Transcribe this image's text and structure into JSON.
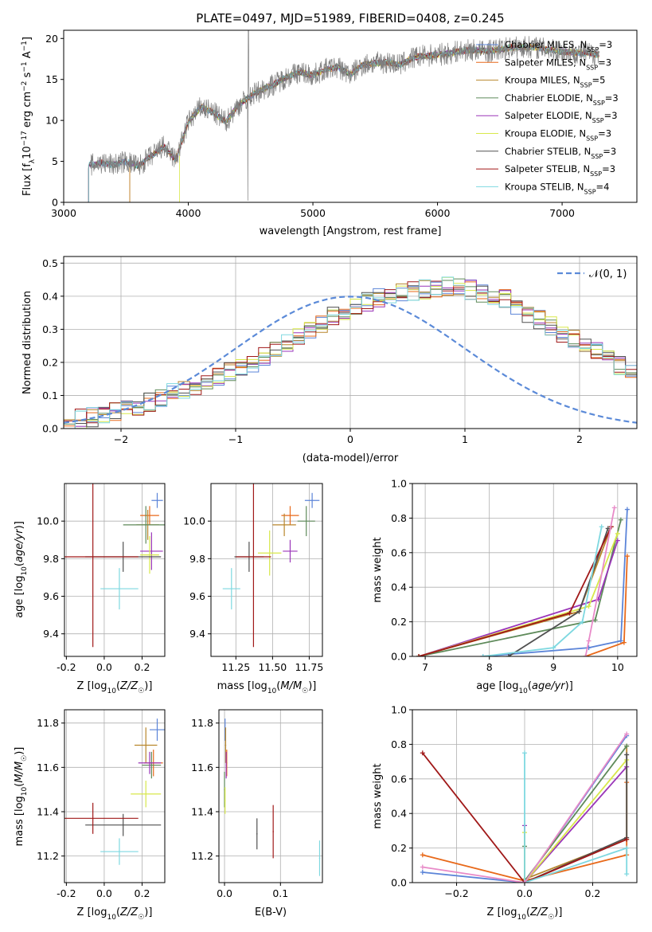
{
  "models": [
    {
      "name": "Chabrier MILES, N$_{SSP}$=3",
      "label": "Chabrier MILES, N",
      "sub": "SSP",
      "eq": "=3",
      "color": "#5b84d8"
    },
    {
      "name": "Salpeter MILES, N$_{SSP}$=3",
      "label": "Salpeter MILES, N",
      "sub": "SSP",
      "eq": "=3",
      "color": "#e8691a"
    },
    {
      "name": "Kroupa MILES, N$_{SSP}$=5",
      "label": "Kroupa MILES, N",
      "sub": "SSP",
      "eq": "=5",
      "color": "#b8862c"
    },
    {
      "name": "Chabrier ELODIE, N$_{SSP}$=3",
      "label": "Chabrier ELODIE, N",
      "sub": "SSP",
      "eq": "=3",
      "color": "#5e8a5a"
    },
    {
      "name": "Salpeter ELODIE, N$_{SSP}$=3",
      "label": "Salpeter ELODIE, N",
      "sub": "SSP",
      "eq": "=3",
      "color": "#9a35b8"
    },
    {
      "name": "Kroupa ELODIE, N$_{SSP}$=3",
      "label": "Kroupa ELODIE, N",
      "sub": "SSP",
      "eq": "=3",
      "color": "#d8e84a"
    },
    {
      "name": "Chabrier STELIB, N$_{SSP}$=3",
      "label": "Chabrier STELIB, N",
      "sub": "SSP",
      "eq": "=3",
      "color": "#505050"
    },
    {
      "name": "Salpeter STELIB, N$_{SSP}$=3",
      "label": "Salpeter STELIB, N",
      "sub": "SSP",
      "eq": "=3",
      "color": "#a01818"
    },
    {
      "name": "Kroupa STELIB, N$_{SSP}$=4",
      "label": "Kroupa STELIB, N",
      "sub": "SSP",
      "eq": "=4",
      "color": "#7ed8e0"
    }
  ],
  "extra_colors": {
    "pink": "#e88ac8",
    "teal": "#3fa8a8"
  },
  "chart_data": [
    {
      "type": "line",
      "title": "PLATE=0497, MJD=51989, FIBERID=0408, z=0.245",
      "xlabel": "wavelength [Angstrom, rest frame]",
      "ylabel": "Flux [f$_\\lambda$10$^{-17}$ erg cm$^{-2}$ s$^{-1}$ A$^{-1}$]",
      "xlim": [
        3000,
        7600
      ],
      "ylim": [
        0,
        21
      ],
      "xticks": [
        "3000",
        "4000",
        "5000",
        "6000",
        "7000"
      ],
      "yticks": [
        "0",
        "5",
        "10",
        "15",
        "20"
      ],
      "continuum": {
        "x": [
          3200,
          3300,
          3400,
          3500,
          3600,
          3700,
          3800,
          3900,
          4000,
          4100,
          4200,
          4300,
          4400,
          4500,
          4600,
          4700,
          4800,
          4900,
          5000,
          5100,
          5200,
          5300,
          5400,
          5500,
          5600,
          5700,
          5800,
          5900,
          6000,
          6100,
          6200,
          6300,
          6400,
          6500,
          6600,
          6700,
          6800,
          6900,
          7000,
          7100,
          7200,
          7300
        ],
        "y": [
          4.5,
          4.8,
          4.6,
          5.0,
          4.4,
          5.6,
          6.8,
          5.2,
          9.8,
          11.6,
          11.0,
          9.8,
          11.8,
          13.0,
          13.8,
          14.5,
          15.4,
          15.9,
          15.5,
          16.2,
          16.5,
          15.6,
          16.8,
          17.0,
          17.1,
          16.8,
          17.6,
          17.9,
          18.0,
          18.2,
          18.5,
          18.6,
          18.4,
          18.7,
          18.9,
          19.0,
          18.9,
          18.6,
          18.4,
          18.3,
          18.2,
          18.0
        ]
      }
    },
    {
      "type": "bar",
      "xlabel": "(data-model)/error",
      "ylabel": "Normed distribution",
      "xlim": [
        -2.5,
        2.5
      ],
      "ylim": [
        0,
        0.52
      ],
      "xticks": [
        "−2",
        "−1",
        "0",
        "1",
        "2"
      ],
      "yticks": [
        "0.0",
        "0.1",
        "0.2",
        "0.3",
        "0.4",
        "0.5"
      ],
      "legend": "$\\mathcal{N}(0,1)$",
      "legend_text": "𝒩(0, 1)",
      "bin_width": 0.1,
      "bin_start": -2.5,
      "base_values": [
        0.02,
        0.03,
        0.035,
        0.04,
        0.05,
        0.06,
        0.07,
        0.08,
        0.095,
        0.11,
        0.12,
        0.13,
        0.14,
        0.155,
        0.17,
        0.185,
        0.2,
        0.22,
        0.24,
        0.26,
        0.28,
        0.3,
        0.32,
        0.34,
        0.355,
        0.37,
        0.385,
        0.395,
        0.405,
        0.41,
        0.415,
        0.42,
        0.425,
        0.43,
        0.425,
        0.42,
        0.41,
        0.4,
        0.39,
        0.37,
        0.35,
        0.33,
        0.31,
        0.29,
        0.27,
        0.25,
        0.23,
        0.21,
        0.19,
        0.17
      ]
    },
    {
      "type": "scatter",
      "xlabel": "Z [log$_{10}$(Z/Z$_\\odot$)]",
      "ylabel": "age  [log$_{10}$(age/yr)]",
      "xlim": [
        -0.21,
        0.32
      ],
      "ylim": [
        9.28,
        10.2
      ],
      "xticks": [
        "-0.2",
        "0.0",
        "0.2"
      ],
      "yticks": [
        "9.4",
        "9.6",
        "9.8",
        "10.0"
      ],
      "points": [
        [
          0.28,
          10.11,
          0.03,
          0.04
        ],
        [
          0.24,
          10.03,
          0.05,
          0.05
        ],
        [
          0.23,
          9.98,
          0.06,
          0.08
        ],
        [
          0.22,
          9.98,
          0.12,
          0.1
        ],
        [
          0.25,
          9.84,
          0.06,
          0.1
        ],
        [
          0.24,
          9.82,
          0.05,
          0.1
        ],
        [
          0.1,
          9.81,
          0.2,
          0.08
        ],
        [
          -0.06,
          9.81,
          0.24,
          0.48
        ],
        [
          0.08,
          9.64,
          0.1,
          0.11
        ]
      ]
    },
    {
      "type": "scatter",
      "xlabel": "mass [log$_{10}$(M/M$_\\odot$)]",
      "ylabel": "",
      "xlim": [
        11.08,
        11.84
      ],
      "ylim": [
        9.28,
        10.2
      ],
      "xticks": [
        "11.25",
        "11.50",
        "11.75"
      ],
      "yticks": [
        "9.4",
        "9.6",
        "9.8",
        "10.0"
      ],
      "points": [
        [
          11.77,
          10.11,
          0.05,
          0.04
        ],
        [
          11.62,
          10.03,
          0.06,
          0.05
        ],
        [
          11.58,
          9.98,
          0.08,
          0.06
        ],
        [
          11.73,
          10.0,
          0.06,
          0.08
        ],
        [
          11.62,
          9.84,
          0.05,
          0.06
        ],
        [
          11.48,
          9.83,
          0.08,
          0.12
        ],
        [
          11.34,
          9.81,
          0.1,
          0.08
        ],
        [
          11.37,
          9.81,
          0.12,
          0.48
        ],
        [
          11.22,
          9.64,
          0.06,
          0.11
        ]
      ]
    },
    {
      "type": "line",
      "xlabel": "age  [log$_{10}$(age/yr)]",
      "ylabel": "mass weight",
      "xlim": [
        6.8,
        10.3
      ],
      "ylim": [
        0,
        1.0
      ],
      "xticks": [
        "7",
        "8",
        "9",
        "10"
      ],
      "yticks": [
        "0.0",
        "0.2",
        "0.4",
        "0.6",
        "0.8",
        "1.0"
      ],
      "lines": [
        [
          [
            7.9,
            0.0
          ],
          [
            9.55,
            0.05
          ],
          [
            10.05,
            0.09
          ],
          [
            10.15,
            0.85
          ]
        ],
        [
          [
            9.5,
            0.0
          ],
          [
            10.1,
            0.08
          ],
          [
            10.15,
            0.58
          ]
        ],
        [
          [
            6.9,
            0.0
          ],
          [
            9.4,
            0.26
          ],
          [
            9.9,
            0.75
          ]
        ],
        [
          [
            6.9,
            0.0
          ],
          [
            9.65,
            0.21
          ],
          [
            10.05,
            0.79
          ]
        ],
        [
          [
            6.9,
            0.0
          ],
          [
            9.7,
            0.33
          ],
          [
            10.0,
            0.67
          ]
        ],
        [
          [
            6.9,
            0.0
          ],
          [
            9.55,
            0.29
          ],
          [
            10.0,
            0.71
          ]
        ],
        [
          [
            8.3,
            0.0
          ],
          [
            9.4,
            0.26
          ],
          [
            9.85,
            0.74
          ]
        ],
        [
          [
            6.9,
            0.0
          ],
          [
            9.25,
            0.25
          ],
          [
            9.9,
            0.75
          ]
        ],
        [
          [
            7.9,
            0.0
          ],
          [
            9.0,
            0.05
          ],
          [
            9.45,
            0.2
          ],
          [
            9.75,
            0.75
          ]
        ],
        [
          [
            9.5,
            0.0
          ],
          [
            9.55,
            0.09
          ],
          [
            9.95,
            0.86
          ]
        ]
      ]
    },
    {
      "type": "scatter",
      "xlabel": "Z [log$_{10}$(Z/Z$_\\odot$)]",
      "ylabel": "mass [log$_{10}$(M/M$_\\odot$)]",
      "xlim": [
        -0.21,
        0.32
      ],
      "ylim": [
        11.08,
        11.86
      ],
      "xticks": [
        "-0.2",
        "0.0",
        "0.2"
      ],
      "yticks": [
        "11.2",
        "11.4",
        "11.6",
        "11.8"
      ],
      "points": [
        [
          0.28,
          11.77,
          0.04,
          0.05
        ],
        [
          0.26,
          11.62,
          0.05,
          0.06
        ],
        [
          0.22,
          11.7,
          0.06,
          0.08
        ],
        [
          0.25,
          11.61,
          0.05,
          0.06
        ],
        [
          0.24,
          11.62,
          0.06,
          0.05
        ],
        [
          0.22,
          11.48,
          0.08,
          0.06
        ],
        [
          0.1,
          11.34,
          0.2,
          0.05
        ],
        [
          -0.06,
          11.37,
          0.24,
          0.07
        ],
        [
          0.08,
          11.22,
          0.1,
          0.06
        ]
      ]
    },
    {
      "type": "scatter",
      "xlabel": "E(B-V)",
      "ylabel": "",
      "xlim": [
        -0.01,
        0.175
      ],
      "ylim": [
        11.08,
        11.86
      ],
      "xticks": [
        "0.0",
        "0.1"
      ],
      "yticks": [
        "11.2",
        "11.4",
        "11.6",
        "11.8"
      ],
      "points": [
        [
          0.001,
          11.77,
          0.001,
          0.05
        ],
        [
          0.004,
          11.62,
          0.001,
          0.06
        ],
        [
          0.002,
          11.7,
          0.001,
          0.08
        ],
        [
          0.0,
          11.5,
          0.001,
          0.08
        ],
        [
          0.003,
          11.61,
          0.001,
          0.06
        ],
        [
          0.001,
          11.45,
          0.001,
          0.06
        ],
        [
          0.058,
          11.3,
          0.001,
          0.07
        ],
        [
          0.087,
          11.31,
          0.001,
          0.12
        ],
        [
          0.17,
          11.19,
          0.001,
          0.08
        ]
      ]
    },
    {
      "type": "line",
      "xlabel": "Z [log$_{10}$(Z/Z$_\\odot$)]",
      "ylabel": "mass weight",
      "xlim": [
        -0.33,
        0.33
      ],
      "ylim": [
        0,
        1.0
      ],
      "xticks": [
        "−0.2",
        "0.0",
        "0.2"
      ],
      "yticks": [
        "0.0",
        "0.2",
        "0.4",
        "0.6",
        "0.8",
        "1.0"
      ],
      "lines": [
        [
          [
            -0.3,
            0.06
          ],
          [
            0.0,
            0.0
          ],
          [
            0.3,
            0.85
          ]
        ],
        [
          [
            -0.3,
            0.16
          ],
          [
            0.0,
            0.01
          ],
          [
            0.3,
            0.16
          ],
          [
            0.3,
            0.58
          ]
        ],
        [
          [
            0.0,
            0.02
          ],
          [
            0.3,
            0.25
          ],
          [
            0.3,
            0.79
          ]
        ],
        [
          [
            0.0,
            0.21
          ],
          [
            0.0,
            0.01
          ],
          [
            0.3,
            0.79
          ]
        ],
        [
          [
            0.0,
            0.33
          ],
          [
            0.0,
            0.0
          ],
          [
            0.3,
            0.67
          ]
        ],
        [
          [
            0.0,
            0.29
          ],
          [
            0.0,
            0.0
          ],
          [
            0.3,
            0.71
          ]
        ],
        [
          [
            0.0,
            0.0
          ],
          [
            0.3,
            0.26
          ],
          [
            0.3,
            0.74
          ]
        ],
        [
          [
            -0.3,
            0.75
          ],
          [
            0.0,
            0.0
          ],
          [
            0.3,
            0.25
          ]
        ],
        [
          [
            0.0,
            0.75
          ],
          [
            0.0,
            0.0
          ],
          [
            0.3,
            0.2
          ],
          [
            0.3,
            0.05
          ]
        ],
        [
          [
            -0.3,
            0.09
          ],
          [
            0.0,
            0.0
          ],
          [
            0.3,
            0.86
          ]
        ]
      ]
    }
  ]
}
